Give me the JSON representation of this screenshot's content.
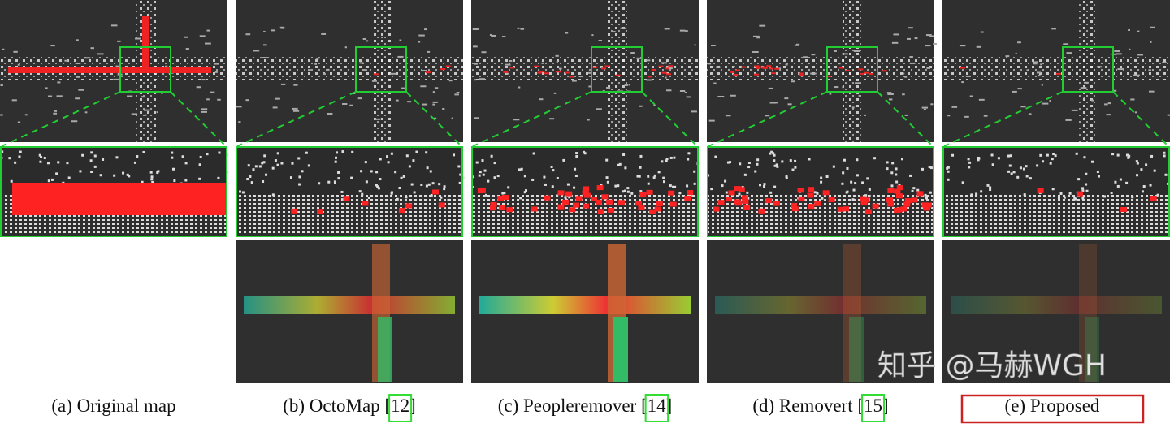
{
  "panels": [
    {
      "caption": [
        "(a) Original map"
      ]
    },
    {
      "caption": [
        "(b) OctoMap [",
        "12",
        "]"
      ]
    },
    {
      "caption": [
        "(c) Peopleremover [",
        "14",
        "]"
      ]
    },
    {
      "caption": [
        "(d) Removert [",
        "15",
        "]"
      ]
    },
    {
      "caption": [
        "(e) Proposed"
      ]
    }
  ],
  "watermark": "知乎 @马赫WGH"
}
